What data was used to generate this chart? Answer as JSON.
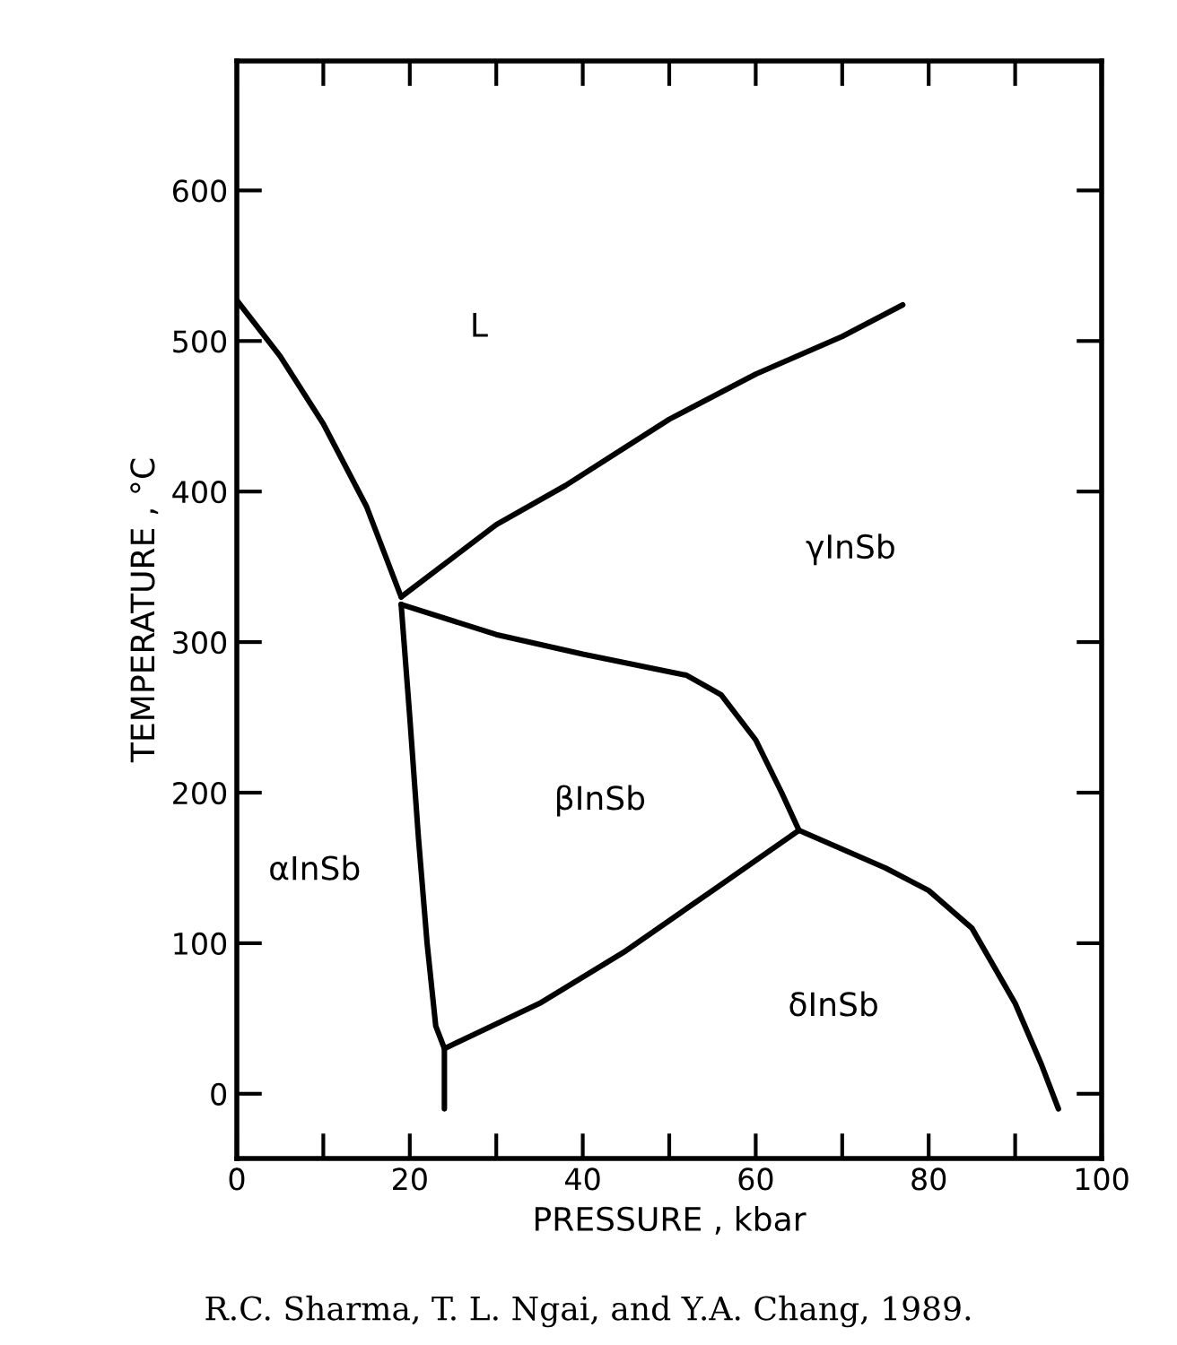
{
  "chart_data": {
    "type": "line",
    "xlabel": "PRESSURE , kbar",
    "ylabel": "TEMPERATURE , °C",
    "xlim": [
      0,
      100
    ],
    "ylim": [
      -43,
      686
    ],
    "xticks": [
      0,
      {
        "value": 10,
        "label": null
      },
      20,
      {
        "value": 30,
        "label": null
      },
      40,
      {
        "value": 50,
        "label": null
      },
      60,
      {
        "value": 70,
        "label": null
      },
      80,
      {
        "value": 90,
        "label": null
      },
      100
    ],
    "yticks": [
      0,
      100,
      200,
      300,
      400,
      500,
      600
    ],
    "grid": false,
    "legend": false,
    "marker": "none",
    "line_style": "solid",
    "series": [
      {
        "color": "#000000",
        "x": [
          0,
          5,
          10,
          15,
          19
        ],
        "values": [
          527,
          490,
          445,
          390,
          330
        ]
      },
      {
        "color": "#000000",
        "x": [
          19,
          30,
          38,
          50,
          60,
          70,
          77
        ],
        "values": [
          330,
          378,
          404,
          448,
          478,
          503,
          524
        ]
      },
      {
        "color": "#000000",
        "x": [
          19,
          30,
          40,
          52,
          56,
          60,
          63,
          65
        ],
        "values": [
          325,
          305,
          292,
          278,
          265,
          235,
          200,
          175
        ]
      },
      {
        "color": "#000000",
        "x": [
          19,
          20,
          21,
          22,
          23,
          24,
          24
        ],
        "values": [
          325,
          250,
          170,
          100,
          45,
          30,
          -10
        ]
      },
      {
        "color": "#000000",
        "x": [
          24,
          35,
          45,
          55,
          65
        ],
        "values": [
          30,
          60,
          95,
          135,
          175
        ]
      },
      {
        "color": "#000000",
        "x": [
          65,
          75,
          80,
          85,
          90,
          93,
          95
        ],
        "values": [
          175,
          150,
          135,
          110,
          60,
          20,
          -10
        ]
      }
    ],
    "annotations": [
      "L",
      "γInSb",
      "βInSb",
      "αInSb",
      "δInSb",
      "R.C. Sharma, T. L. Ngai, and Y.A. Chang, 1989."
    ]
  }
}
